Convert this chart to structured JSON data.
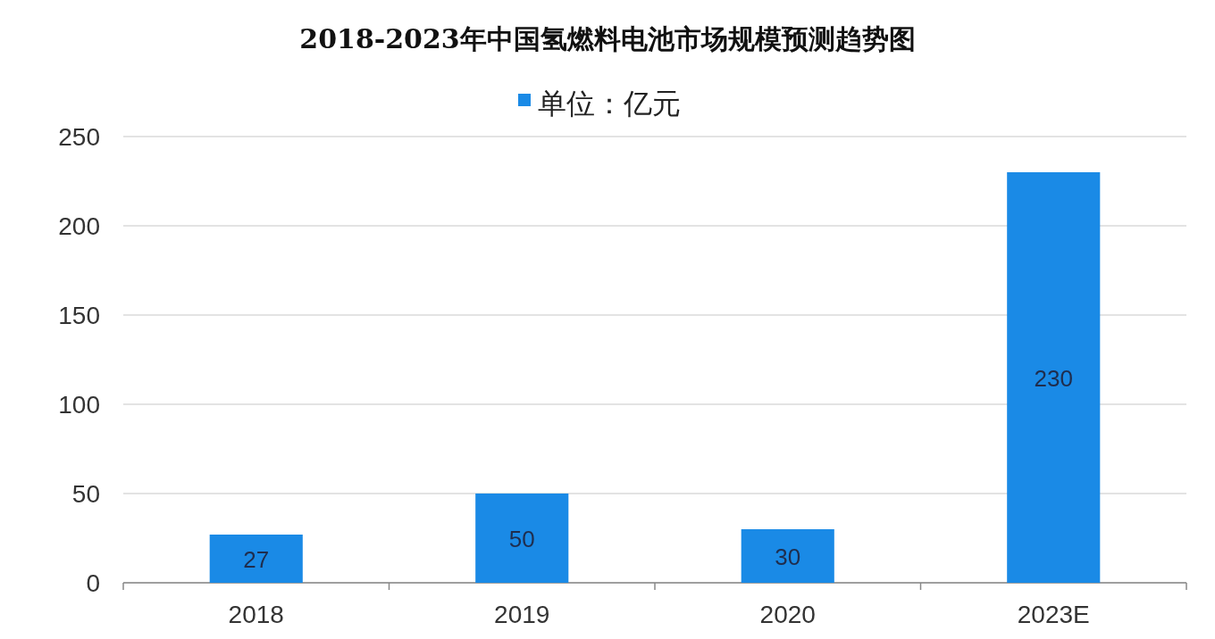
{
  "chart_data": {
    "type": "bar",
    "title": "2018-2023年中国氢燃料电池市场规模预测趋势图",
    "categories": [
      "2018",
      "2019",
      "2020",
      "2023E"
    ],
    "series": [
      {
        "name": "单位：亿元",
        "color": "#1a8ae6",
        "values": [
          27,
          50,
          30,
          230
        ]
      }
    ],
    "ylim": [
      0,
      250
    ],
    "yticks": [
      0,
      50,
      100,
      150,
      200,
      250
    ],
    "grid": "y",
    "legend": "top",
    "data_labels": true
  }
}
